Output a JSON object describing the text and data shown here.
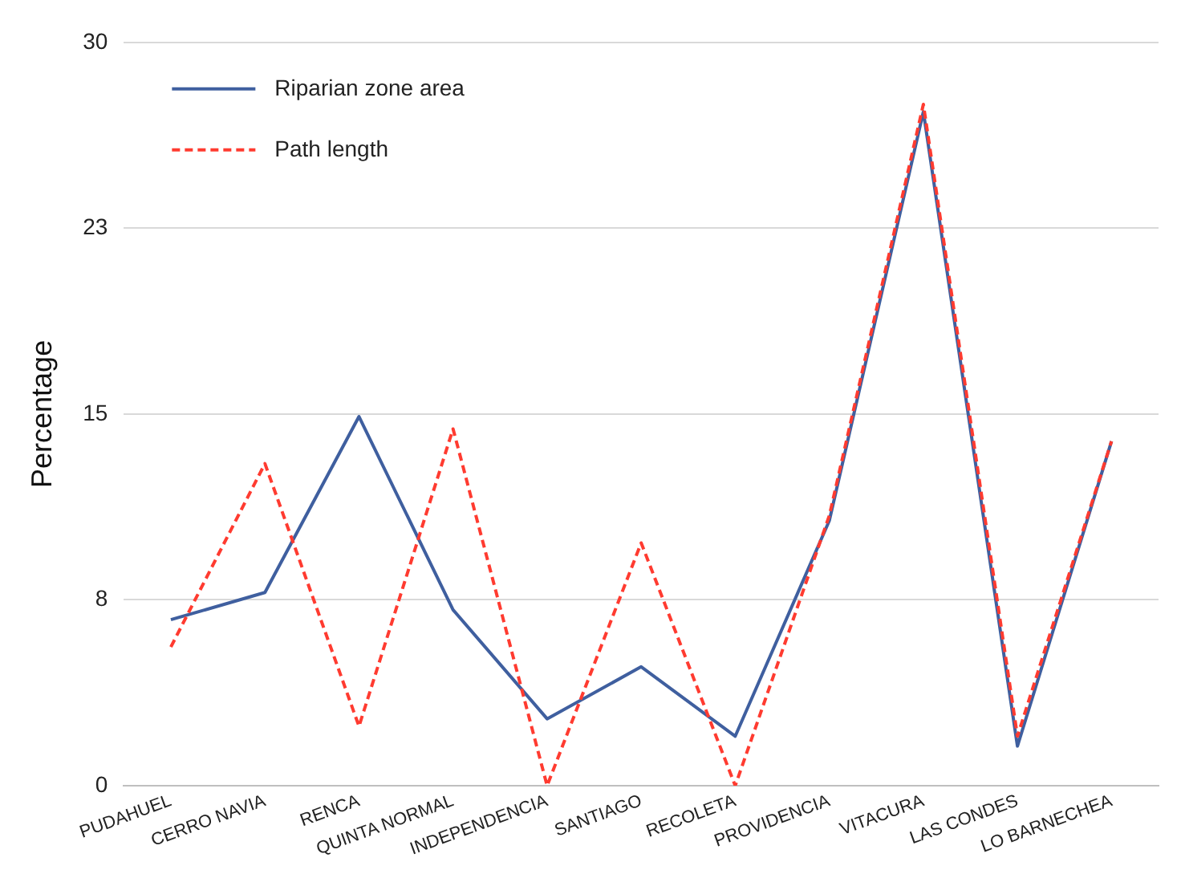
{
  "chart_data": {
    "type": "line",
    "ylabel": "Percentage",
    "categories": [
      "PUDAHUEL",
      "CERRO NAVIA",
      "RENCA",
      "QUINTA NORMAL",
      "INDEPENDENCIA",
      "SANTIAGO",
      "RECOLETA",
      "PROVIDENCIA",
      "VITACURA",
      "LAS CONDES",
      "LO BARNECHEA"
    ],
    "series": [
      {
        "name": "Riparian zone area",
        "color": "#3f5f9f",
        "line_style": "solid",
        "values": [
          6.7,
          7.8,
          14.9,
          7.1,
          2.7,
          4.8,
          2.0,
          10.7,
          27.2,
          1.6,
          13.9
        ]
      },
      {
        "name": "Path length",
        "color": "#ff3b30",
        "line_style": "dashed",
        "values": [
          5.6,
          13.0,
          2.4,
          14.4,
          0,
          9.8,
          0,
          10.9,
          27.5,
          2.0,
          13.9
        ]
      }
    ],
    "ylim": [
      0,
      30
    ],
    "yticks": [
      0,
      {
        "value": 7.5,
        "label": "8"
      },
      15,
      {
        "value": 22.5,
        "label": "23"
      },
      30
    ],
    "grid": "y",
    "legend": "top left",
    "marker": "none"
  }
}
